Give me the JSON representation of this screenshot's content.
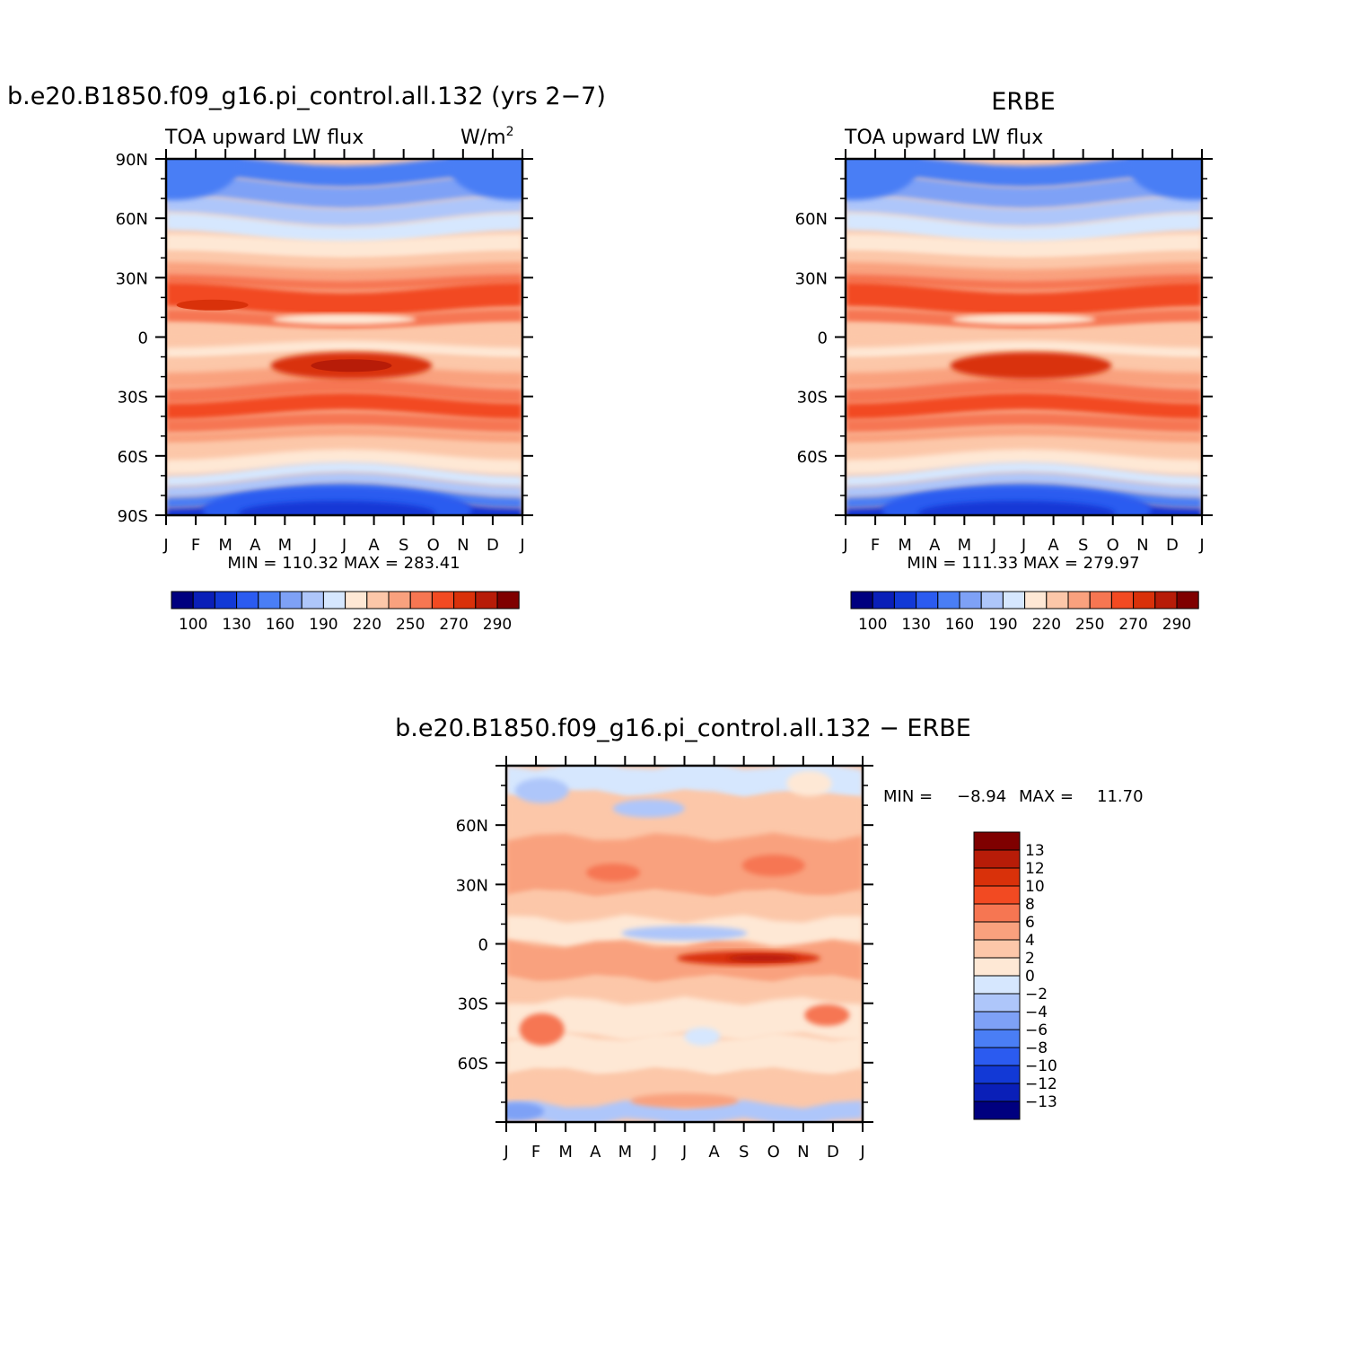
{
  "palette": [
    "#00007f",
    "#0a1fb8",
    "#1239d6",
    "#2b5bf0",
    "#4a7ef5",
    "#7ea1f6",
    "#aec6fa",
    "#d6e7fe",
    "#fee8d5",
    "#fcc7a9",
    "#f9a17e",
    "#f67652",
    "#f24a22",
    "#d9310a",
    "#b71c08",
    "#7f0000"
  ],
  "months": [
    "J",
    "F",
    "M",
    "A",
    "M",
    "J",
    "J",
    "A",
    "S",
    "O",
    "N",
    "D",
    "J"
  ],
  "chart_data": [
    {
      "type": "heatmap",
      "title": "b.e20.B1850.f09_g16.pi_control.all.132 (yrs 2−7)",
      "subtitle_left": "TOA upward LW flux",
      "units": "W/m",
      "units_sup": "2",
      "lat_ticks": [
        "90N",
        "60N",
        "30N",
        "0",
        "30S",
        "60S",
        "90S"
      ],
      "ylim": [
        -90,
        90
      ],
      "stats": "MIN =  110.32  MAX =  283.41",
      "colorbar_labels": [
        "100",
        "130",
        "160",
        "190",
        "220",
        "250",
        "270",
        "290"
      ]
    },
    {
      "type": "heatmap",
      "title": "ERBE",
      "subtitle_left": "TOA upward LW flux",
      "lat_ticks": [
        "60N",
        "30N",
        "0",
        "30S",
        "60S"
      ],
      "ylim": [
        -90,
        90
      ],
      "stats": "MIN =  111.33  MAX =  279.97",
      "colorbar_labels": [
        "100",
        "130",
        "160",
        "190",
        "220",
        "250",
        "270",
        "290"
      ]
    },
    {
      "type": "heatmap",
      "title": "b.e20.B1850.f09_g16.pi_control.all.132  −  ERBE",
      "lat_ticks": [
        "60N",
        "30N",
        "0",
        "30S",
        "60S"
      ],
      "ylim": [
        -90,
        90
      ],
      "stats_label_min": "MIN =",
      "stats_min": "−8.94",
      "stats_label_max": "MAX =",
      "stats_max": "11.70",
      "colorbar_labels": [
        "13",
        "12",
        "10",
        "8",
        "6",
        "4",
        "2",
        "0",
        "−2",
        "−4",
        "−6",
        "−8",
        "−10",
        "−12",
        "−13"
      ]
    }
  ]
}
